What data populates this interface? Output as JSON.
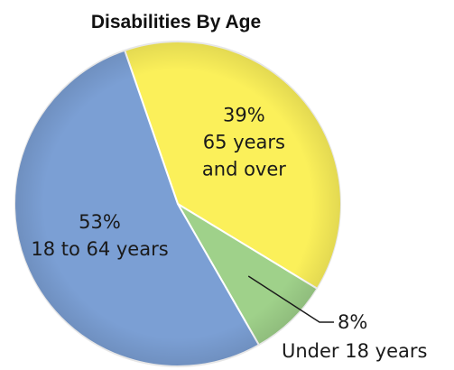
{
  "chart_data": {
    "type": "pie",
    "title": "Disabilities By Age",
    "slices": [
      {
        "label": "65 years and over",
        "value": 39,
        "value_text": "39%",
        "label_lines": [
          "65 years",
          "and over"
        ],
        "color": "#fbf05a"
      },
      {
        "label": "Under 18 years",
        "value": 8,
        "value_text": "8%",
        "label_lines": [
          "Under 18 years"
        ],
        "color": "#9fd18a"
      },
      {
        "label": "18 to 64 years",
        "value": 53,
        "value_text": "53%",
        "label_lines": [
          "18 to 64 years"
        ],
        "color": "#7b9fd4"
      }
    ],
    "label_placement": "inside-slice; smallest slice labeled outside with leader line",
    "legend": "none",
    "slice_border_color": "#ffffff",
    "text_color": "#1a1a1a"
  }
}
